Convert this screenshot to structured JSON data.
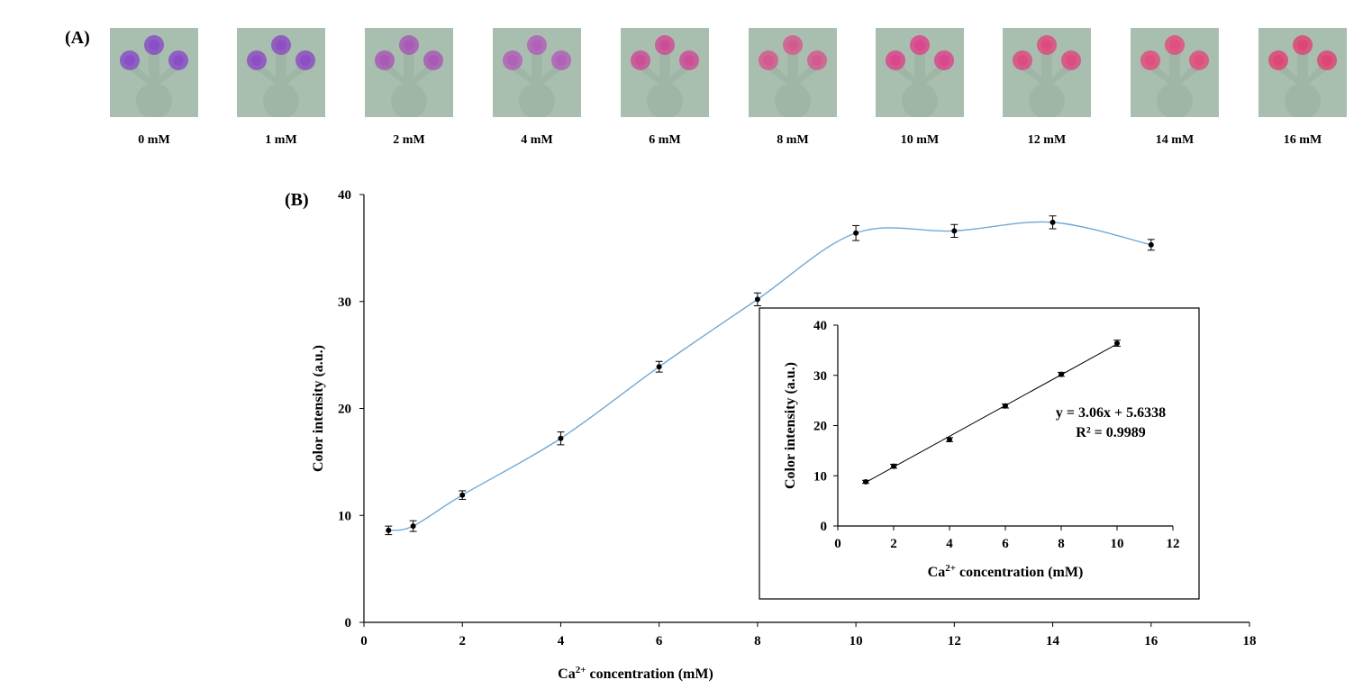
{
  "panel_a_label": "(A)",
  "panel_b_label": "(B)",
  "colorimetric_strip_panel": {
    "tiles": [
      {
        "label": "0 mM",
        "color": "#8a4fc6"
      },
      {
        "label": "1 mM",
        "color": "#8d4fc2"
      },
      {
        "label": "2 mM",
        "color": "#a85bb5"
      },
      {
        "label": "4 mM",
        "color": "#b061b8"
      },
      {
        "label": "6 mM",
        "color": "#cc4f95"
      },
      {
        "label": "8 mM",
        "color": "#d35a8f"
      },
      {
        "label": "10 mM",
        "color": "#d9478c"
      },
      {
        "label": "12 mM",
        "color": "#dc4c80"
      },
      {
        "label": "14 mM",
        "color": "#df4f80"
      },
      {
        "label": "16 mM",
        "color": "#dd4677"
      }
    ]
  },
  "chart_data": [
    {
      "type": "line",
      "title": "",
      "xlabel_base": "Ca",
      "xlabel_sup": "2+",
      "xlabel_rest": " concentration  (mM)",
      "ylabel": "Color intensity (a.u.)",
      "xlim": [
        0,
        18
      ],
      "ylim": [
        0,
        40
      ],
      "xticks": [
        "0",
        "2",
        "4",
        "6",
        "8",
        "10",
        "12",
        "14",
        "16",
        "18"
      ],
      "yticks": [
        "0",
        "10",
        "20",
        "30",
        "40"
      ],
      "series": [
        {
          "x": [
            0.5,
            1,
            2,
            4,
            6,
            8,
            10,
            12,
            14,
            16
          ],
          "y": [
            8.6,
            9.0,
            11.9,
            17.2,
            23.9,
            30.2,
            36.4,
            36.6,
            37.4,
            35.3
          ],
          "yerr": [
            0.4,
            0.5,
            0.4,
            0.6,
            0.5,
            0.6,
            0.7,
            0.6,
            0.6,
            0.5
          ],
          "smooth": true,
          "line_color": "#6fa8d6"
        }
      ],
      "grid": false
    },
    {
      "type": "scatter",
      "title": "",
      "inset": true,
      "xlabel_base": "Ca",
      "xlabel_sup": "2+",
      "xlabel_rest": " concentration (mM)",
      "ylabel": "Color intensity (a.u.)",
      "xlim": [
        0,
        12
      ],
      "ylim": [
        0,
        40
      ],
      "xticks": [
        "0",
        "2",
        "4",
        "6",
        "8",
        "10",
        "12"
      ],
      "yticks": [
        "0",
        "10",
        "20",
        "30",
        "40"
      ],
      "series": [
        {
          "x": [
            1,
            2,
            4,
            6,
            8,
            10
          ],
          "y": [
            8.8,
            11.9,
            17.2,
            23.9,
            30.2,
            36.4
          ],
          "yerr": [
            0.3,
            0.4,
            0.4,
            0.4,
            0.4,
            0.6
          ],
          "trendline": {
            "slope": 3.06,
            "intercept": 5.6338,
            "x_range": [
              1,
              10
            ],
            "color": "#000000"
          }
        }
      ],
      "annotations": {
        "equation": "y = 3.06x + 5.6338",
        "r2": "R² = 0.9989"
      },
      "grid": false
    }
  ]
}
